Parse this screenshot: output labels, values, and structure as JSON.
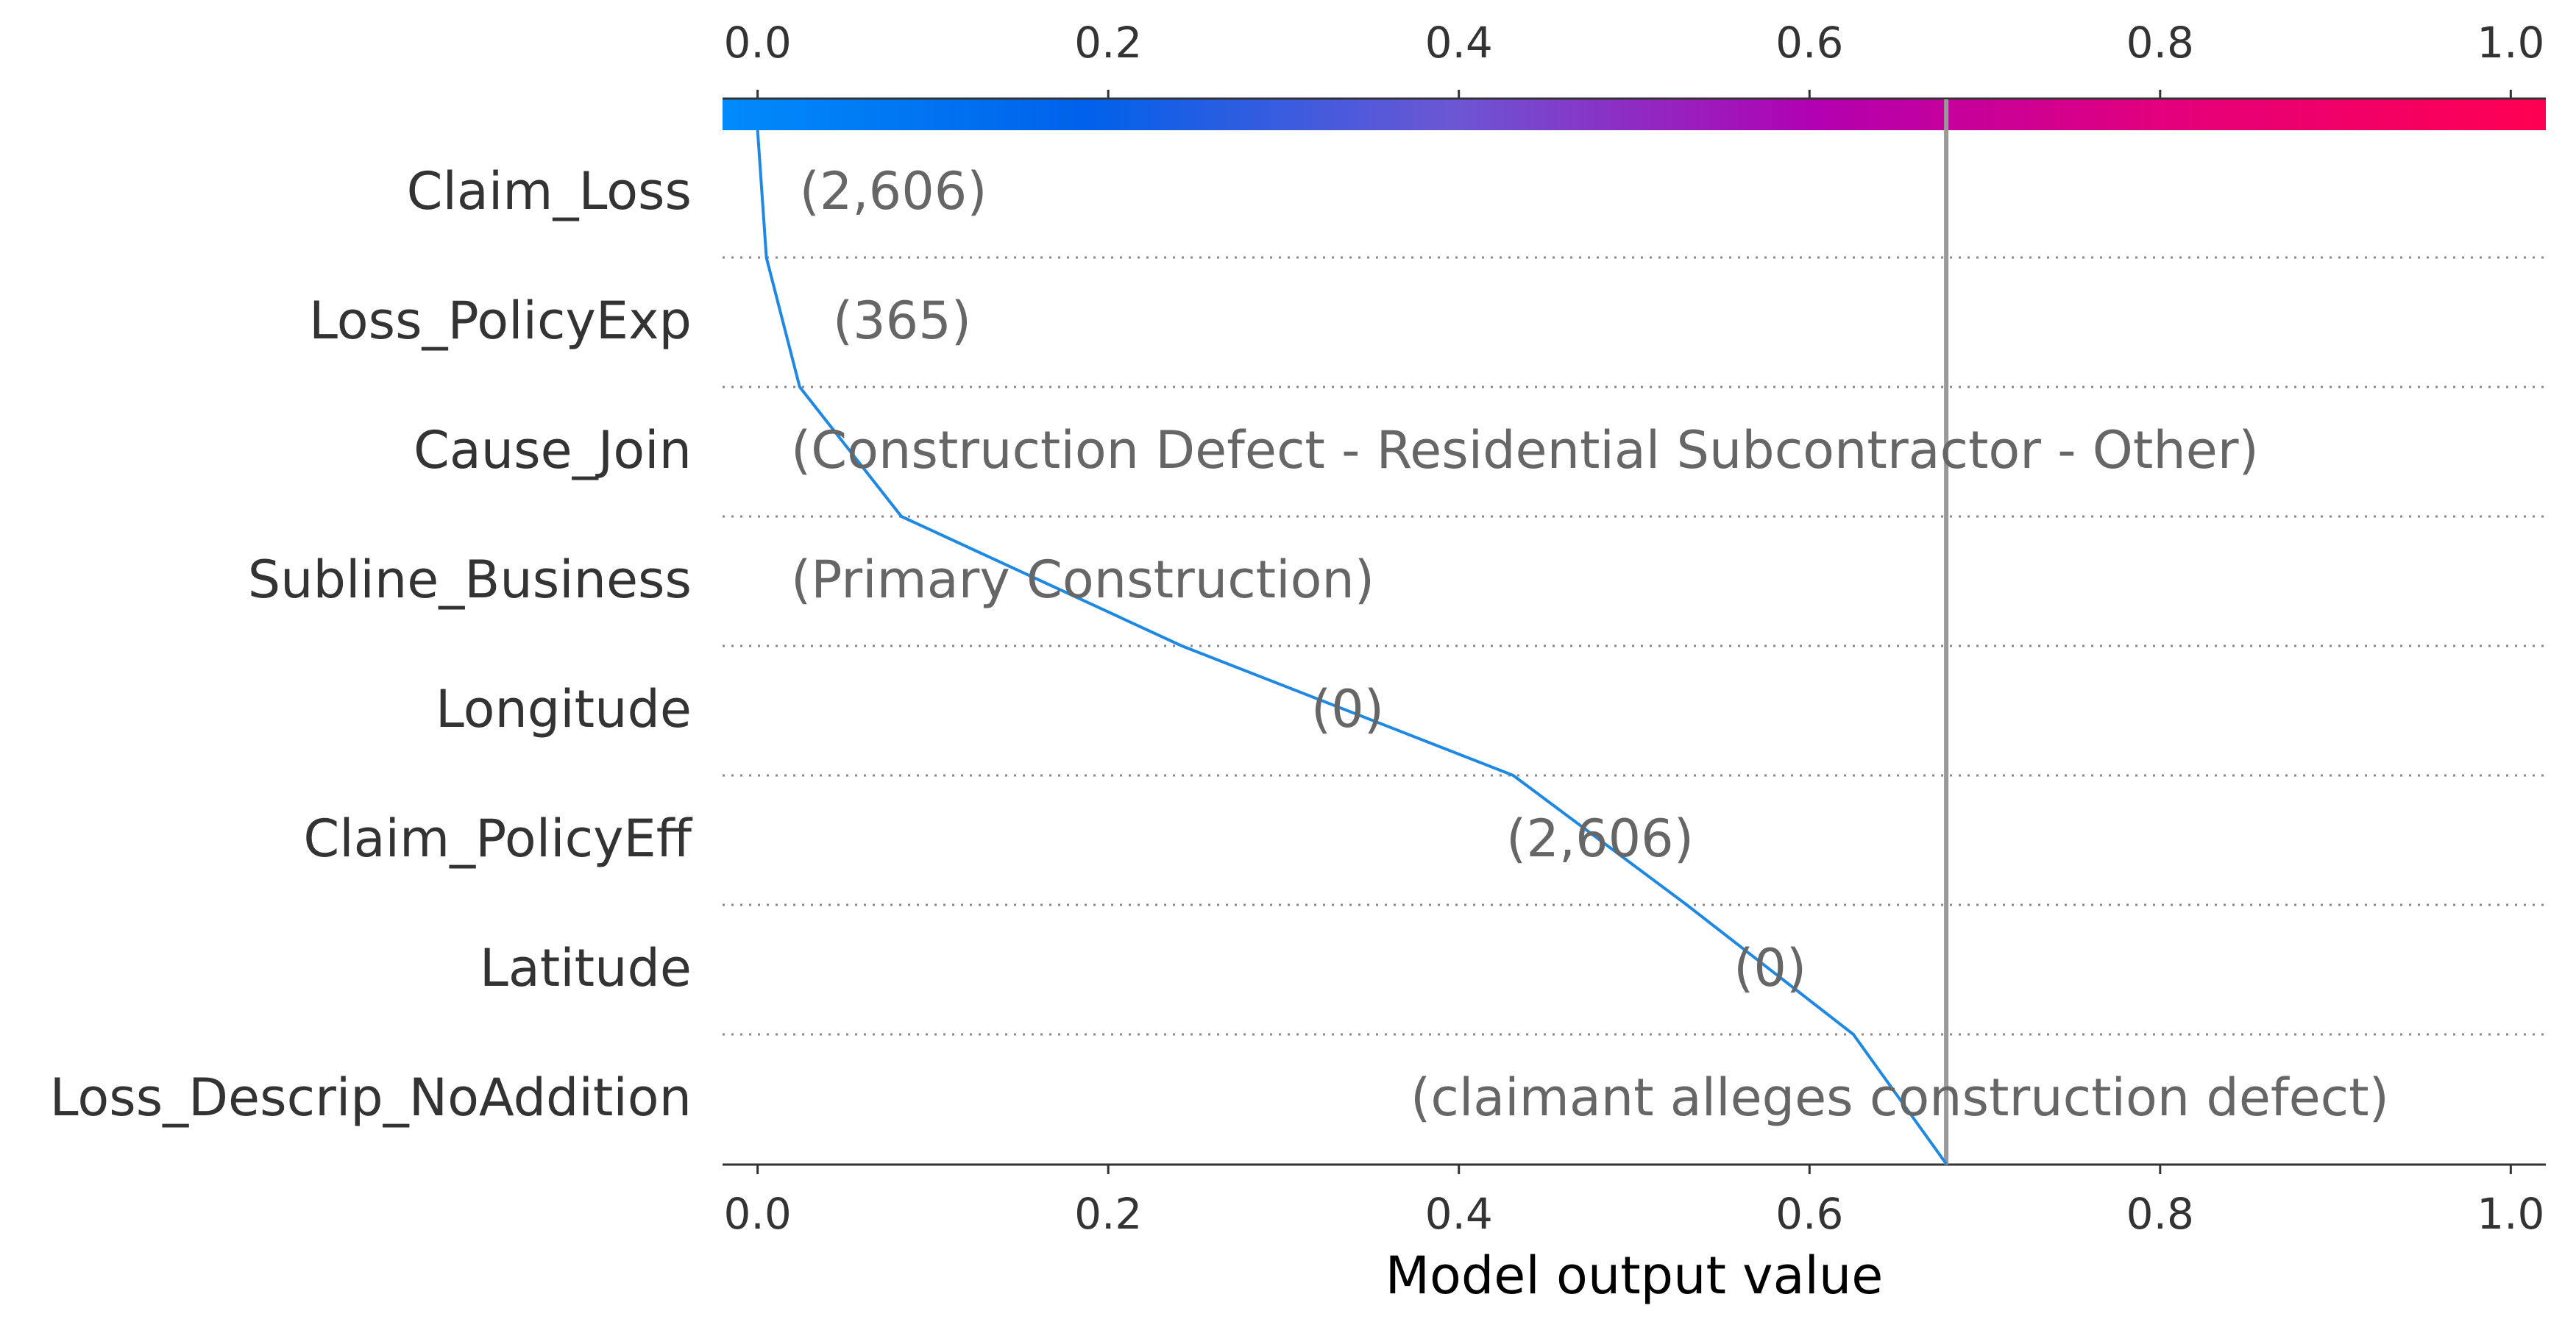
{
  "chart_data": {
    "type": "line",
    "chart_style": "decision-plot",
    "xlabel": "Model output value",
    "xlim": [
      -0.02,
      1.02
    ],
    "xticks": [
      0.0,
      0.2,
      0.4,
      0.6,
      0.8,
      1.0
    ],
    "tick_labels": [
      "0.0",
      "0.2",
      "0.4",
      "0.6",
      "0.8",
      "1.0"
    ],
    "base_value": 0.0,
    "prediction_line": 0.678,
    "colorbar": {
      "range": [
        0,
        1
      ],
      "colors": [
        "#008bfb",
        "#0061ea",
        "#6b57d4",
        "#b200b0",
        "#e5007a",
        "#ff0052"
      ]
    },
    "features": [
      {
        "name": "Claim_Loss",
        "value_label": "(2,606)",
        "cumulative": 0.005
      },
      {
        "name": "Loss_PolicyExp",
        "value_label": "(365)",
        "cumulative": 0.024
      },
      {
        "name": "Cause_Join",
        "value_label": "(Construction Defect - Residential Subcontractor - Other)",
        "cumulative": 0.082
      },
      {
        "name": "Subline_Business",
        "value_label": "(Primary Construction)",
        "cumulative": 0.242
      },
      {
        "name": "Longitude",
        "value_label": "(0)",
        "cumulative": 0.431
      },
      {
        "name": "Claim_PolicyEff",
        "value_label": "(2,606)",
        "cumulative": 0.53
      },
      {
        "name": "Latitude",
        "value_label": "(0)",
        "cumulative": 0.625
      },
      {
        "name": "Loss_Descrip_NoAddition",
        "value_label": "(claimant alleges construction defect)",
        "cumulative": 0.678
      }
    ],
    "line_color": "#1e88e5",
    "prediction_line_color": "#999999",
    "grid": false
  }
}
